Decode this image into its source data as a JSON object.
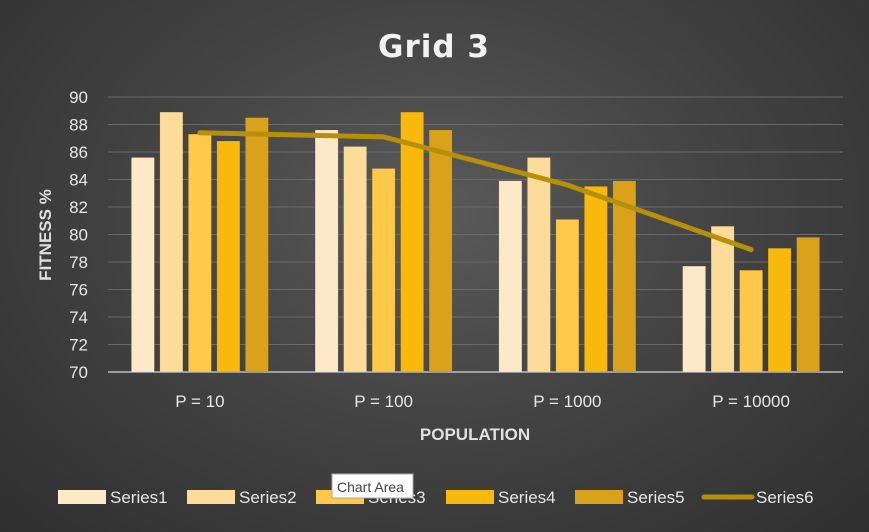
{
  "chart_data": {
    "type": "bar",
    "title": "Grid 3",
    "xlabel": "POPULATION",
    "ylabel": "FITNESS %",
    "categories": [
      "P = 10",
      "P = 100",
      "P = 1000",
      "P = 10000"
    ],
    "ylim": [
      70,
      90
    ],
    "yticks": [
      70,
      72,
      74,
      76,
      78,
      80,
      82,
      84,
      86,
      88,
      90
    ],
    "grid": true,
    "legend_position": "bottom",
    "series": [
      {
        "name": "Series1",
        "type": "bar",
        "color": "#fde9c8",
        "values": [
          85.6,
          87.6,
          83.9,
          77.7
        ]
      },
      {
        "name": "Series2",
        "type": "bar",
        "color": "#fddc9a",
        "values": [
          88.9,
          86.4,
          85.6,
          80.6
        ]
      },
      {
        "name": "Series3",
        "type": "bar",
        "color": "#fec84a",
        "values": [
          87.3,
          84.8,
          81.1,
          77.4
        ]
      },
      {
        "name": "Series4",
        "type": "bar",
        "color": "#f8b90c",
        "values": [
          86.8,
          88.9,
          83.5,
          79.0
        ]
      },
      {
        "name": "Series5",
        "type": "bar",
        "color": "#d9a21a",
        "values": [
          88.5,
          87.6,
          83.9,
          79.8
        ]
      },
      {
        "name": "Series6",
        "type": "line",
        "color": "#b59008",
        "values": [
          87.4,
          87.1,
          83.6,
          78.9
        ]
      }
    ]
  },
  "tooltip": {
    "text": "Chart Area"
  }
}
